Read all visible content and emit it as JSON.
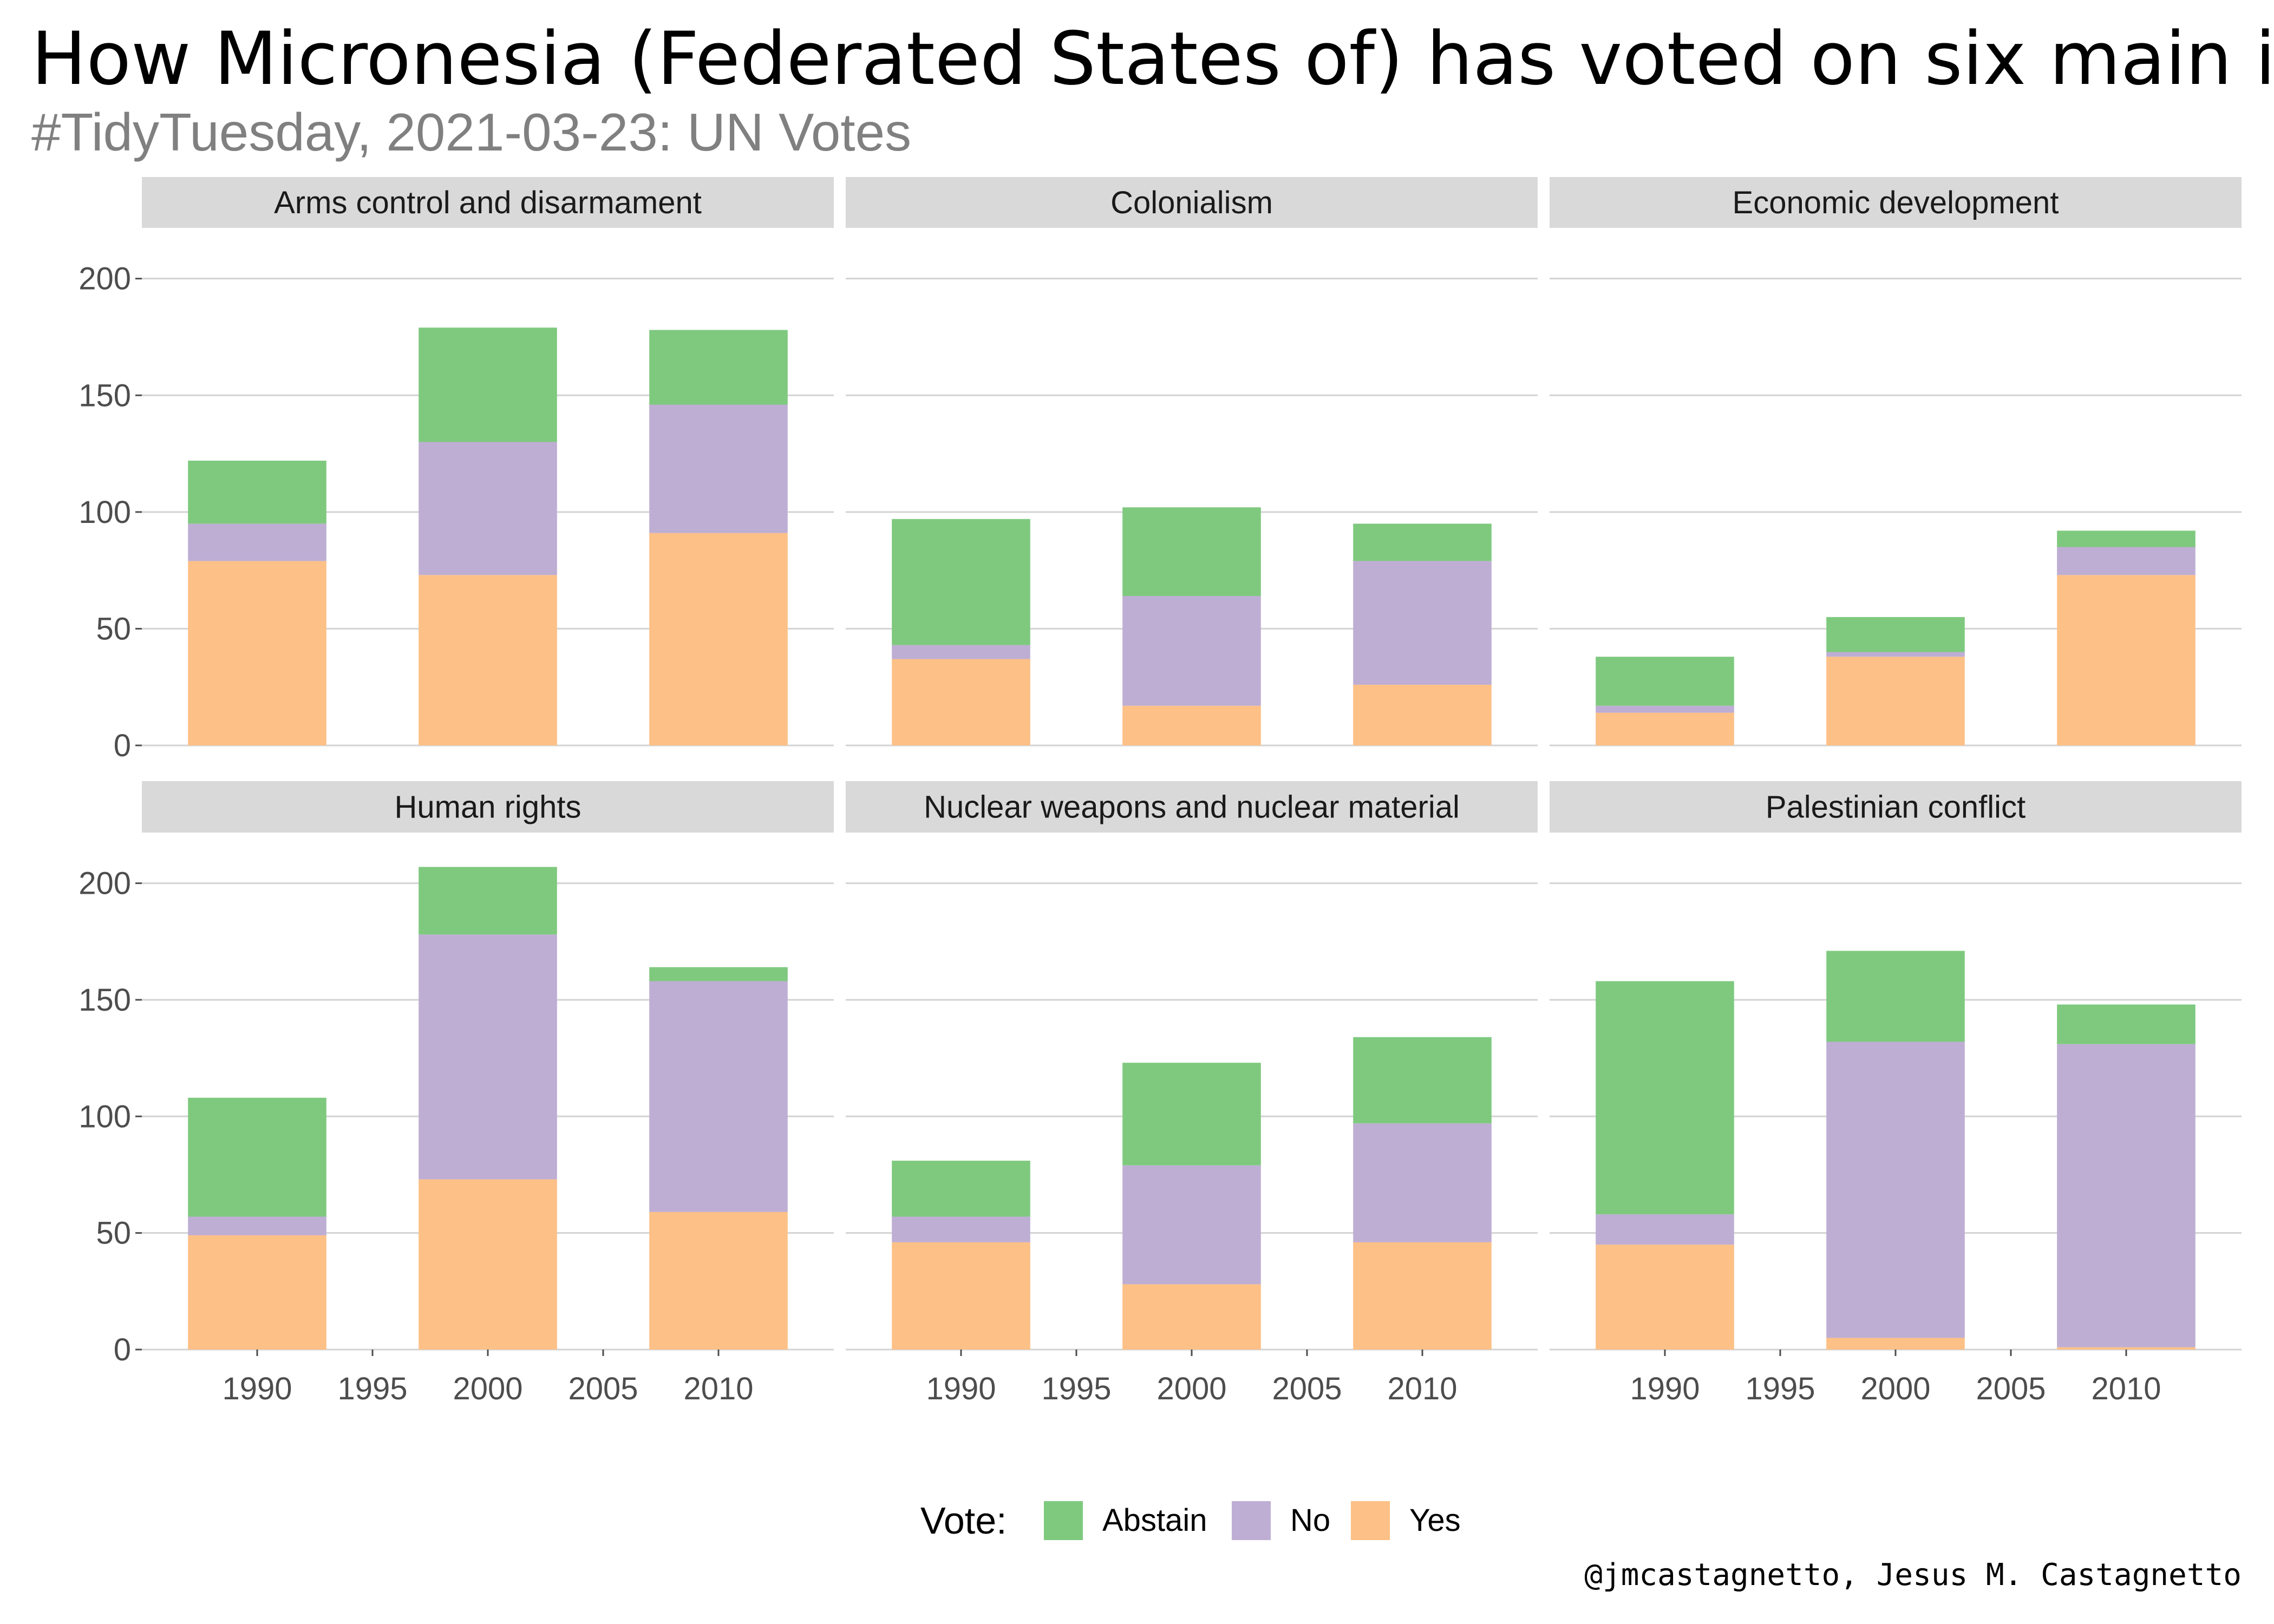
{
  "title": "How Micronesia (Federated States of) has voted on six main issue",
  "subtitle": "#TidyTuesday, 2021-03-23: UN Votes",
  "caption": "@jmcastagnetto, Jesus M. Castagnetto",
  "legend": {
    "title": "Vote:",
    "items": [
      {
        "label": "Abstain",
        "color": "#7fc97f"
      },
      {
        "label": "No",
        "color": "#beaed4"
      },
      {
        "label": "Yes",
        "color": "#fdc086"
      }
    ]
  },
  "chart_data": {
    "type": "bar",
    "stacked": true,
    "facet_layout": "2 rows x 3 columns, shared axes",
    "x_ticks": [
      1990,
      1995,
      2000,
      2005,
      2010
    ],
    "x_range": [
      1985,
      2015
    ],
    "y_ticks": [
      0,
      50,
      100,
      150,
      200
    ],
    "y_range": [
      0,
      215
    ],
    "bar_x": [
      1990,
      2000,
      2010
    ],
    "stack_order_bottom_to_top": [
      "Yes",
      "No",
      "Abstain"
    ],
    "grid": "horizontal major gridlines",
    "legend_position": "bottom",
    "panels": [
      {
        "title": "Arms control and disarmament",
        "series": [
          {
            "name": "Yes",
            "values": [
              79,
              73,
              91
            ]
          },
          {
            "name": "No",
            "values": [
              16,
              57,
              55
            ]
          },
          {
            "name": "Abstain",
            "values": [
              27,
              49,
              32
            ]
          }
        ]
      },
      {
        "title": "Colonialism",
        "series": [
          {
            "name": "Yes",
            "values": [
              37,
              17,
              26
            ]
          },
          {
            "name": "No",
            "values": [
              6,
              47,
              53
            ]
          },
          {
            "name": "Abstain",
            "values": [
              54,
              38,
              16
            ]
          }
        ]
      },
      {
        "title": "Economic development",
        "series": [
          {
            "name": "Yes",
            "values": [
              14,
              38,
              73
            ]
          },
          {
            "name": "No",
            "values": [
              3,
              2,
              12
            ]
          },
          {
            "name": "Abstain",
            "values": [
              21,
              15,
              7
            ]
          }
        ]
      },
      {
        "title": "Human rights",
        "series": [
          {
            "name": "Yes",
            "values": [
              49,
              73,
              59
            ]
          },
          {
            "name": "No",
            "values": [
              8,
              105,
              99
            ]
          },
          {
            "name": "Abstain",
            "values": [
              51,
              29,
              6
            ]
          }
        ]
      },
      {
        "title": "Nuclear weapons and nuclear material",
        "series": [
          {
            "name": "Yes",
            "values": [
              46,
              28,
              46
            ]
          },
          {
            "name": "No",
            "values": [
              11,
              51,
              51
            ]
          },
          {
            "name": "Abstain",
            "values": [
              24,
              44,
              37
            ]
          }
        ]
      },
      {
        "title": "Palestinian conflict",
        "series": [
          {
            "name": "Yes",
            "values": [
              45,
              5,
              1
            ]
          },
          {
            "name": "No",
            "values": [
              13,
              127,
              130
            ]
          },
          {
            "name": "Abstain",
            "values": [
              100,
              39,
              17
            ]
          }
        ]
      }
    ]
  }
}
